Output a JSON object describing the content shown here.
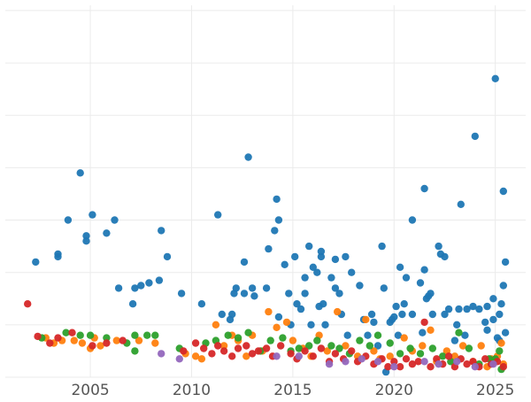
{
  "chart_data": {
    "type": "scatter",
    "title": "",
    "xlabel": "",
    "ylabel": "",
    "xlim": [
      2000.8,
      2026.5
    ],
    "ylim": [
      0,
      7.1
    ],
    "grid": true,
    "legend": "none",
    "x_ticks": [
      2005,
      2010,
      2015,
      2020,
      2025
    ],
    "x_tick_labels": [
      "2005",
      "2010",
      "2015",
      "2020",
      "2025"
    ],
    "series": [
      {
        "color": "#1f77b4",
        "points": [
          [
            2002.3,
            2.2
          ],
          [
            2003.4,
            2.35
          ],
          [
            2003.4,
            2.3
          ],
          [
            2003.9,
            3.0
          ],
          [
            2004.5,
            3.9
          ],
          [
            2004.8,
            2.7
          ],
          [
            2004.8,
            2.6
          ],
          [
            2005.1,
            3.1
          ],
          [
            2005.8,
            2.75
          ],
          [
            2006.2,
            3.0
          ],
          [
            2006.4,
            1.7
          ],
          [
            2007.1,
            1.4
          ],
          [
            2007.2,
            1.7
          ],
          [
            2007.5,
            1.75
          ],
          [
            2007.9,
            1.8
          ],
          [
            2008.4,
            1.85
          ],
          [
            2008.5,
            2.8
          ],
          [
            2008.8,
            2.3
          ],
          [
            2009.5,
            1.6
          ],
          [
            2010.5,
            1.4
          ],
          [
            2011.3,
            3.1
          ],
          [
            2011.5,
            1.2
          ],
          [
            2011.9,
            1.1
          ],
          [
            2012.0,
            1.2
          ],
          [
            2012.1,
            1.6
          ],
          [
            2012.2,
            1.7
          ],
          [
            2012.6,
            1.6
          ],
          [
            2012.6,
            2.2
          ],
          [
            2012.8,
            4.2
          ],
          [
            2013.0,
            1.7
          ],
          [
            2013.1,
            1.55
          ],
          [
            2013.7,
            1.7
          ],
          [
            2013.8,
            2.45
          ],
          [
            2014.1,
            2.8
          ],
          [
            2014.2,
            3.4
          ],
          [
            2014.3,
            3.0
          ],
          [
            2014.3,
            1.15
          ],
          [
            2014.6,
            2.15
          ],
          [
            2014.8,
            1.6
          ],
          [
            2014.9,
            1.0
          ],
          [
            2015.1,
            2.3
          ],
          [
            2015.2,
            1.4
          ],
          [
            2015.4,
            1.3
          ],
          [
            2015.6,
            1.6
          ],
          [
            2015.6,
            1.9
          ],
          [
            2015.8,
            2.5
          ],
          [
            2015.9,
            1.0
          ],
          [
            2016.0,
            2.1
          ],
          [
            2016.2,
            2.0
          ],
          [
            2016.3,
            1.35
          ],
          [
            2016.4,
            2.4
          ],
          [
            2016.4,
            2.3
          ],
          [
            2016.5,
            1.4
          ],
          [
            2016.6,
            1.0
          ],
          [
            2016.9,
            1.9
          ],
          [
            2017.1,
            1.7
          ],
          [
            2017.1,
            2.25
          ],
          [
            2017.3,
            1.6
          ],
          [
            2017.4,
            1.2
          ],
          [
            2017.6,
            2.3
          ],
          [
            2017.7,
            0.8
          ],
          [
            2017.9,
            2.0
          ],
          [
            2018.3,
            1.75
          ],
          [
            2018.5,
            1.1
          ],
          [
            2018.7,
            0.8
          ],
          [
            2018.9,
            1.2
          ],
          [
            2019.0,
            1.05
          ],
          [
            2019.2,
            0.6
          ],
          [
            2019.4,
            2.5
          ],
          [
            2019.5,
            1.7
          ],
          [
            2019.6,
            0.1
          ],
          [
            2019.8,
            1.05
          ],
          [
            2019.9,
            1.1
          ],
          [
            2020.0,
            1.15
          ],
          [
            2020.1,
            1.35
          ],
          [
            2020.2,
            0.8
          ],
          [
            2020.3,
            2.1
          ],
          [
            2020.4,
            1.2
          ],
          [
            2020.5,
            1.4
          ],
          [
            2020.6,
            1.9
          ],
          [
            2020.9,
            1.2
          ],
          [
            2020.9,
            3.0
          ],
          [
            2021.3,
            1.8
          ],
          [
            2021.4,
            0.85
          ],
          [
            2021.5,
            2.05
          ],
          [
            2021.5,
            3.6
          ],
          [
            2021.6,
            1.5
          ],
          [
            2021.7,
            1.55
          ],
          [
            2021.8,
            1.6
          ],
          [
            2021.9,
            1.2
          ],
          [
            2022.2,
            2.5
          ],
          [
            2022.3,
            2.35
          ],
          [
            2022.5,
            1.2
          ],
          [
            2022.5,
            2.3
          ],
          [
            2022.7,
            1.3
          ],
          [
            2023.0,
            0.7
          ],
          [
            2023.1,
            1.0
          ],
          [
            2023.2,
            1.3
          ],
          [
            2023.3,
            3.3
          ],
          [
            2023.5,
            0.8
          ],
          [
            2023.6,
            1.3
          ],
          [
            2023.9,
            1.35
          ],
          [
            2024.0,
            4.6
          ],
          [
            2024.2,
            1.3
          ],
          [
            2024.5,
            1.05
          ],
          [
            2024.6,
            0.9
          ],
          [
            2024.6,
            1.35
          ],
          [
            2024.9,
            1.5
          ],
          [
            2024.9,
            1.1
          ],
          [
            2025.0,
            5.7
          ],
          [
            2025.1,
            0.75
          ],
          [
            2025.2,
            0.7
          ],
          [
            2025.2,
            1.2
          ],
          [
            2025.3,
            1.4
          ],
          [
            2025.4,
            3.55
          ],
          [
            2025.4,
            1.75
          ],
          [
            2025.5,
            2.2
          ],
          [
            2025.5,
            0.85
          ]
        ]
      },
      {
        "color": "#ff7f0e",
        "points": [
          [
            2002.8,
            0.75
          ],
          [
            2003.2,
            0.65
          ],
          [
            2003.6,
            0.7
          ],
          [
            2004.2,
            0.7
          ],
          [
            2004.6,
            0.65
          ],
          [
            2005.0,
            0.55
          ],
          [
            2005.2,
            0.75
          ],
          [
            2005.5,
            0.6
          ],
          [
            2006.3,
            0.7
          ],
          [
            2007.4,
            0.7
          ],
          [
            2008.2,
            0.65
          ],
          [
            2009.7,
            0.45
          ],
          [
            2010.2,
            0.4
          ],
          [
            2010.5,
            0.35
          ],
          [
            2011.2,
            1.0
          ],
          [
            2011.6,
            0.6
          ],
          [
            2012.0,
            0.8
          ],
          [
            2012.3,
            0.7
          ],
          [
            2012.7,
            0.4
          ],
          [
            2013.0,
            0.8
          ],
          [
            2013.5,
            0.5
          ],
          [
            2013.8,
            1.25
          ],
          [
            2014.2,
            0.95
          ],
          [
            2014.7,
            1.05
          ],
          [
            2015.0,
            0.7
          ],
          [
            2015.5,
            0.55
          ],
          [
            2015.9,
            0.4
          ],
          [
            2016.3,
            0.8
          ],
          [
            2016.7,
            0.5
          ],
          [
            2017.2,
            1.25
          ],
          [
            2017.6,
            0.6
          ],
          [
            2018.2,
            0.4
          ],
          [
            2018.6,
            1.1
          ],
          [
            2019.0,
            0.5
          ],
          [
            2019.3,
            0.35
          ],
          [
            2019.8,
            0.4
          ],
          [
            2020.5,
            0.75
          ],
          [
            2020.9,
            0.5
          ],
          [
            2021.4,
            0.6
          ],
          [
            2021.8,
            0.9
          ],
          [
            2022.1,
            0.3
          ],
          [
            2022.6,
            0.5
          ],
          [
            2023.0,
            0.4
          ],
          [
            2023.4,
            0.6
          ],
          [
            2023.9,
            0.3
          ],
          [
            2024.3,
            0.6
          ],
          [
            2024.6,
            0.2
          ],
          [
            2024.8,
            0.35
          ],
          [
            2025.1,
            0.4
          ],
          [
            2025.3,
            0.65
          ],
          [
            2025.4,
            0.25
          ]
        ]
      },
      {
        "color": "#2ca02c",
        "points": [
          [
            2002.6,
            0.75
          ],
          [
            2003.8,
            0.85
          ],
          [
            2004.5,
            0.8
          ],
          [
            2005.0,
            0.8
          ],
          [
            2005.8,
            0.75
          ],
          [
            2006.8,
            0.65
          ],
          [
            2007.2,
            0.5
          ],
          [
            2007.2,
            0.8
          ],
          [
            2007.8,
            0.8
          ],
          [
            2008.2,
            0.8
          ],
          [
            2009.4,
            0.55
          ],
          [
            2010.7,
            0.65
          ],
          [
            2011.2,
            0.7
          ],
          [
            2011.8,
            0.8
          ],
          [
            2012.3,
            0.75
          ],
          [
            2012.8,
            0.85
          ],
          [
            2013.4,
            0.5
          ],
          [
            2013.9,
            0.7
          ],
          [
            2014.5,
            0.75
          ],
          [
            2014.9,
            0.5
          ],
          [
            2015.3,
            0.55
          ],
          [
            2015.8,
            0.6
          ],
          [
            2016.2,
            0.7
          ],
          [
            2016.9,
            0.6
          ],
          [
            2017.3,
            0.55
          ],
          [
            2017.8,
            0.45
          ],
          [
            2018.3,
            0.7
          ],
          [
            2018.8,
            0.6
          ],
          [
            2019.2,
            0.8
          ],
          [
            2019.8,
            0.65
          ],
          [
            2020.3,
            0.45
          ],
          [
            2020.8,
            0.55
          ],
          [
            2021.3,
            0.45
          ],
          [
            2021.9,
            0.55
          ],
          [
            2022.4,
            0.4
          ],
          [
            2022.8,
            0.3
          ],
          [
            2023.2,
            0.85
          ],
          [
            2023.7,
            0.55
          ],
          [
            2024.2,
            0.25
          ],
          [
            2024.7,
            0.35
          ],
          [
            2025.0,
            0.35
          ],
          [
            2025.2,
            0.5
          ],
          [
            2025.3,
            0.15
          ]
        ]
      },
      {
        "color": "#d62728",
        "points": [
          [
            2001.9,
            1.4
          ],
          [
            2002.4,
            0.78
          ],
          [
            2003.0,
            0.65
          ],
          [
            2003.4,
            0.75
          ],
          [
            2004.1,
            0.85
          ],
          [
            2005.1,
            0.6
          ],
          [
            2005.8,
            0.65
          ],
          [
            2006.6,
            0.7
          ],
          [
            2009.6,
            0.5
          ],
          [
            2010.2,
            0.65
          ],
          [
            2010.6,
            0.55
          ],
          [
            2011.0,
            0.45
          ],
          [
            2011.3,
            0.6
          ],
          [
            2011.6,
            0.5
          ],
          [
            2012.0,
            0.4
          ],
          [
            2012.3,
            0.55
          ],
          [
            2012.7,
            0.6
          ],
          [
            2013.0,
            0.45
          ],
          [
            2013.3,
            0.5
          ],
          [
            2013.7,
            0.55
          ],
          [
            2014.0,
            0.4
          ],
          [
            2014.4,
            0.6
          ],
          [
            2014.9,
            0.45
          ],
          [
            2015.2,
            0.35
          ],
          [
            2015.6,
            0.5
          ],
          [
            2016.0,
            0.4
          ],
          [
            2016.4,
            0.55
          ],
          [
            2016.8,
            0.3
          ],
          [
            2017.1,
            0.45
          ],
          [
            2017.5,
            0.35
          ],
          [
            2017.9,
            0.5
          ],
          [
            2018.2,
            0.3
          ],
          [
            2018.6,
            0.4
          ],
          [
            2019.0,
            0.25
          ],
          [
            2019.4,
            0.35
          ],
          [
            2019.7,
            0.2
          ],
          [
            2020.0,
            0.3
          ],
          [
            2020.3,
            0.2
          ],
          [
            2020.6,
            0.35
          ],
          [
            2020.9,
            0.25
          ],
          [
            2021.2,
            0.3
          ],
          [
            2021.5,
            1.05
          ],
          [
            2021.8,
            0.2
          ],
          [
            2022.1,
            0.35
          ],
          [
            2022.4,
            0.25
          ],
          [
            2022.7,
            0.4
          ],
          [
            2023.0,
            0.2
          ],
          [
            2023.3,
            0.35
          ],
          [
            2023.6,
            0.25
          ],
          [
            2023.9,
            0.3
          ],
          [
            2024.2,
            0.2
          ],
          [
            2024.5,
            0.35
          ],
          [
            2024.8,
            0.25
          ],
          [
            2025.1,
            0.3
          ],
          [
            2025.4,
            0.2
          ]
        ]
      },
      {
        "color": "#9467bd",
        "points": [
          [
            2008.5,
            0.45
          ],
          [
            2009.4,
            0.35
          ],
          [
            2014.2,
            0.4
          ],
          [
            2015.3,
            0.4
          ],
          [
            2016.8,
            0.25
          ],
          [
            2017.6,
            0.3
          ],
          [
            2018.4,
            0.35
          ],
          [
            2019.2,
            0.3
          ],
          [
            2020.0,
            0.2
          ],
          [
            2021.5,
            0.3
          ],
          [
            2022.2,
            0.25
          ],
          [
            2023.1,
            0.3
          ],
          [
            2024.0,
            0.2
          ],
          [
            2024.9,
            0.25
          ]
        ]
      }
    ]
  }
}
